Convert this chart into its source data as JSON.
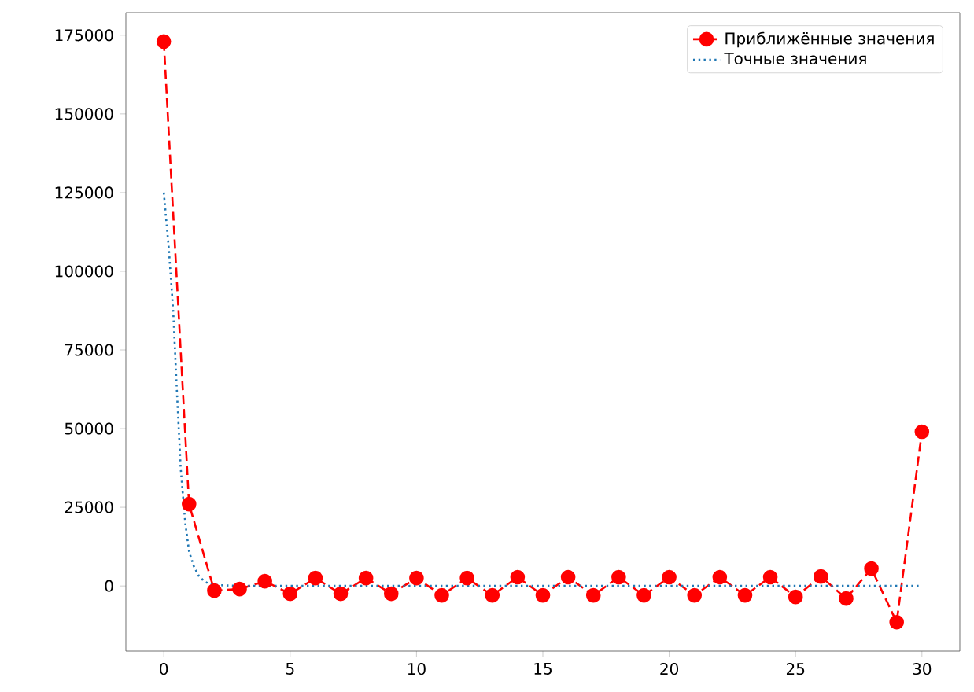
{
  "chart_data": {
    "type": "line",
    "x": [
      0,
      1,
      2,
      3,
      4,
      5,
      6,
      7,
      8,
      9,
      10,
      11,
      12,
      13,
      14,
      15,
      16,
      17,
      18,
      19,
      20,
      21,
      22,
      23,
      24,
      25,
      26,
      27,
      28,
      29,
      30
    ],
    "series": [
      {
        "name": "Приближённые  значения",
        "color": "#ff0000",
        "marker": "circle",
        "line_style": "dashed",
        "values": [
          173000,
          26000,
          -1500,
          -1000,
          1500,
          -2500,
          2500,
          -2500,
          2500,
          -2500,
          2500,
          -3000,
          2500,
          -3000,
          2800,
          -3000,
          2800,
          -3000,
          2800,
          -3000,
          2800,
          -3000,
          2800,
          -3000,
          2800,
          -3500,
          3000,
          -4000,
          5500,
          -11500,
          49000
        ]
      },
      {
        "name": "Точные значения",
        "color": "#1f77b4",
        "marker": "none",
        "line_style": "dotted",
        "x": [
          0,
          0.2,
          0.37,
          0.5,
          0.67,
          0.85,
          1,
          1.2,
          1.4,
          1.6,
          1.8,
          2,
          3,
          5,
          10,
          15,
          20,
          25,
          30
        ],
        "values": [
          125000,
          107000,
          87700,
          65000,
          37300,
          20000,
          11000,
          6000,
          3000,
          1500,
          600,
          300,
          0,
          0,
          0,
          0,
          0,
          0,
          0
        ]
      }
    ],
    "xlim": [
      -1.5,
      31.5
    ],
    "ylim": [
      -20700,
      182200
    ],
    "xticks": [
      0,
      5,
      10,
      15,
      20,
      25,
      30
    ],
    "yticks": [
      0,
      25000,
      50000,
      75000,
      100000,
      125000,
      150000,
      175000
    ],
    "grid": false,
    "legend": "top right"
  }
}
